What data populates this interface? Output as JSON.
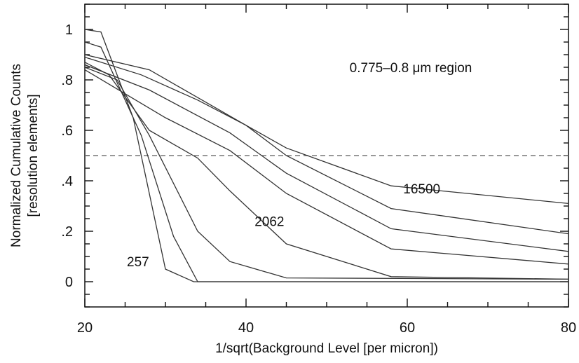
{
  "chart_data": {
    "type": "line",
    "title": "",
    "xlabel": "1/sqrt(Background Level [per micron])",
    "ylabel_lines": [
      "Normalized Cumulative Counts",
      "[resolution elements]"
    ],
    "xlim": [
      20,
      80
    ],
    "ylim": [
      -0.1,
      1.1
    ],
    "x_ticks": [
      20,
      40,
      60,
      80
    ],
    "x_tick_labels": [
      "20",
      "40",
      "60",
      "80"
    ],
    "y_ticks": [
      0,
      0.2,
      0.4,
      0.6,
      0.8,
      1.0
    ],
    "y_tick_labels": [
      "0",
      ".2",
      ".4",
      ".6",
      ".8",
      "1"
    ],
    "region_label": "0.775–0.8 μm region",
    "reference_line": {
      "y": 0.5,
      "style": "dashed"
    },
    "series": [
      {
        "x": [
          20,
          22,
          26,
          30,
          33.5,
          80
        ],
        "y": [
          1.0,
          0.99,
          0.65,
          0.05,
          0.0,
          0.0
        ]
      },
      {
        "x": [
          20,
          22,
          27,
          31,
          34,
          38,
          80
        ],
        "y": [
          0.95,
          0.93,
          0.58,
          0.18,
          0.0,
          0.0,
          0.0
        ]
      },
      {
        "x": [
          20,
          24,
          28,
          34,
          38,
          45,
          80
        ],
        "y": [
          0.85,
          0.8,
          0.58,
          0.2,
          0.08,
          0.015,
          0.01
        ]
      },
      {
        "x": [
          20,
          23,
          28,
          34,
          38,
          45,
          58,
          80
        ],
        "y": [
          0.87,
          0.82,
          0.6,
          0.49,
          0.36,
          0.15,
          0.02,
          0.01
        ]
      },
      {
        "x": [
          20,
          30,
          38,
          45,
          58,
          80
        ],
        "y": [
          0.84,
          0.65,
          0.52,
          0.35,
          0.13,
          0.07
        ]
      },
      {
        "x": [
          20,
          28,
          38,
          45,
          58,
          80
        ],
        "y": [
          0.86,
          0.76,
          0.59,
          0.43,
          0.21,
          0.12
        ]
      },
      {
        "x": [
          20,
          27,
          34,
          40,
          45,
          58,
          80
        ],
        "y": [
          0.89,
          0.82,
          0.72,
          0.62,
          0.5,
          0.29,
          0.19
        ]
      },
      {
        "x": [
          20,
          28,
          34,
          40,
          45,
          58,
          80
        ],
        "y": [
          0.9,
          0.84,
          0.73,
          0.62,
          0.53,
          0.38,
          0.31
        ]
      }
    ],
    "annotations": [
      {
        "text": "257",
        "x": 26.6,
        "y": 0.08
      },
      {
        "text": "2062",
        "x": 42.9,
        "y": 0.24
      },
      {
        "text": "16500",
        "x": 61.8,
        "y": 0.37
      }
    ]
  }
}
